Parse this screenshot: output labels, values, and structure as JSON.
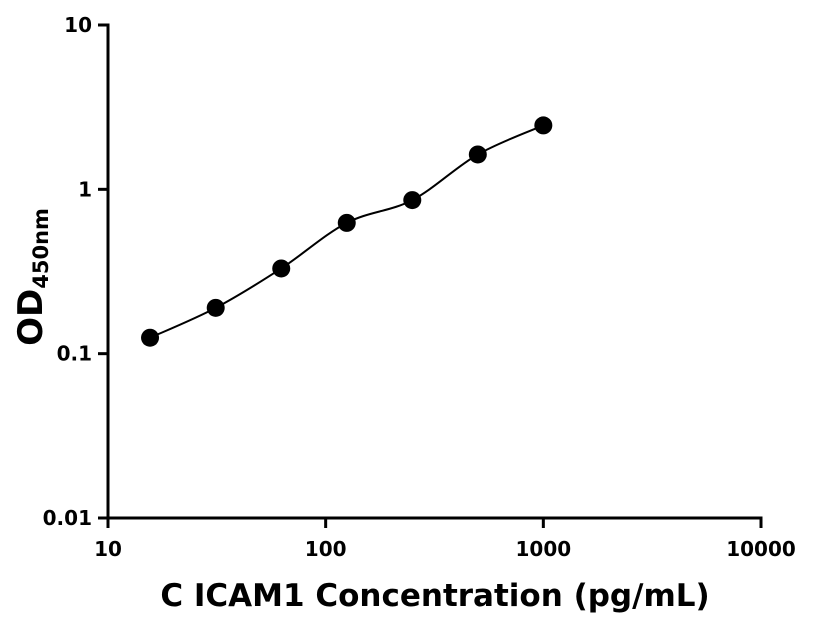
{
  "chart_data": {
    "type": "scatter",
    "x_label": "C ICAM1 Concentration (pg/mL)",
    "y_label": "OD",
    "y_label_sub": "450nm",
    "x": [
      15.6,
      31.25,
      62.5,
      125,
      250,
      500,
      1000
    ],
    "values": [
      0.125,
      0.19,
      0.33,
      0.625,
      0.86,
      1.63,
      2.45
    ],
    "color": "#000000",
    "fit_line": true,
    "xscale": "log",
    "yscale": "log",
    "xlim": [
      10,
      10000
    ],
    "ylim": [
      0.01,
      10
    ],
    "xticks": [
      10,
      100,
      1000,
      10000
    ],
    "yticks": [
      0.01,
      0.1,
      1,
      10
    ],
    "grid": false
  }
}
